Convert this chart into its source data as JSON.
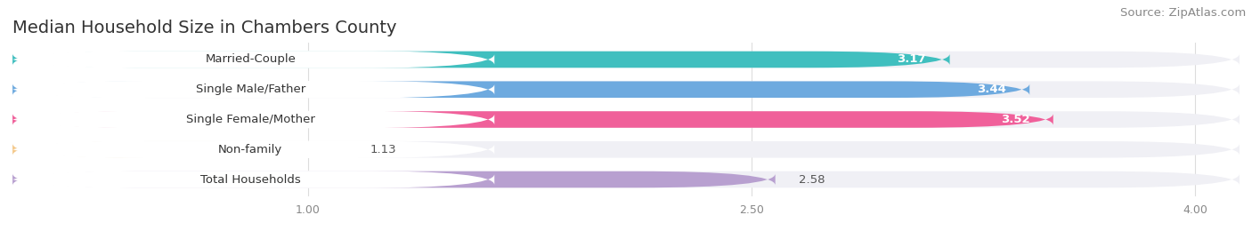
{
  "title": "Median Household Size in Chambers County",
  "source": "Source: ZipAtlas.com",
  "categories": [
    "Married-Couple",
    "Single Male/Father",
    "Single Female/Mother",
    "Non-family",
    "Total Households"
  ],
  "values": [
    3.17,
    3.44,
    3.52,
    1.13,
    2.58
  ],
  "bar_colors": [
    "#40bfbf",
    "#6eaadf",
    "#f0609a",
    "#f5c98a",
    "#b8a0d0"
  ],
  "value_colors": [
    "white",
    "white",
    "white",
    "#555555",
    "#555555"
  ],
  "xlim_min": 0,
  "xlim_max": 4.15,
  "xtick_vals": [
    1.0,
    2.5,
    4.0
  ],
  "xtick_labels": [
    "1.00",
    "2.50",
    "4.00"
  ],
  "background_color": "#ffffff",
  "bar_bg_color": "#f0f0f5",
  "bar_height": 0.55,
  "title_fontsize": 14,
  "source_fontsize": 9.5,
  "label_fontsize": 9.5,
  "value_fontsize": 9.5
}
